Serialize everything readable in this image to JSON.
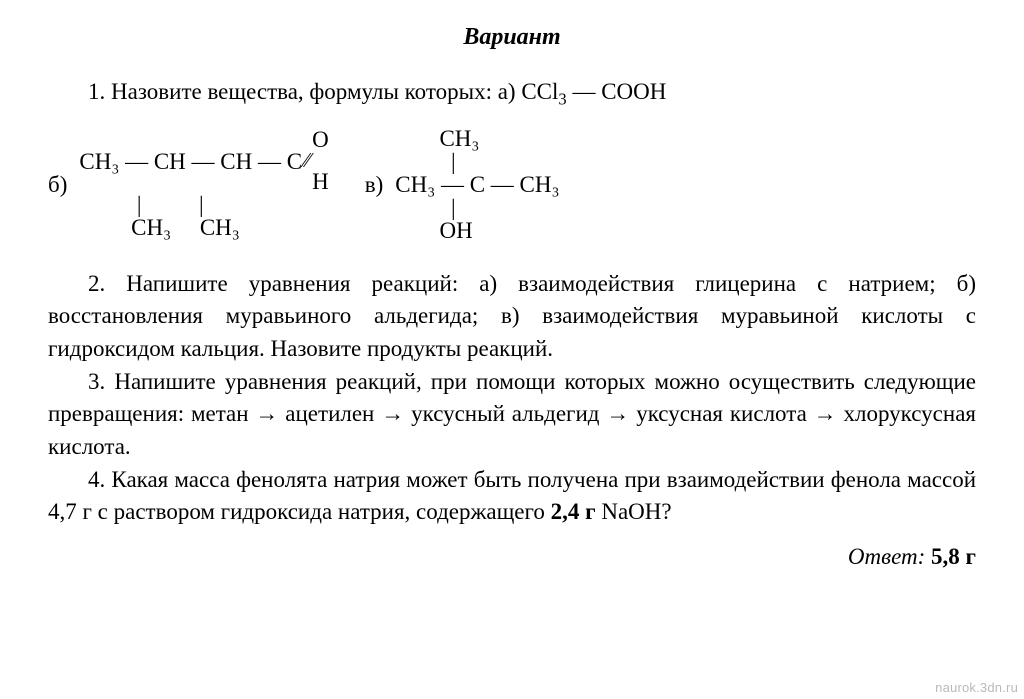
{
  "title": "Вариант",
  "q1": {
    "lead": "1. Назовите вещества, формулы которых: а) CCl",
    "sub1": "3",
    "tail": " — COOH"
  },
  "formula_b": {
    "label": "б)",
    "top": "                                CH₃",
    "vtop": "                                  |",
    "main_l": "CH₃ — CH — CH — C",
    "ald_top": "O",
    "ald_mid": "⁄⁄",
    "ald_bot": "H",
    "vbot": "          |          |",
    "bot": "         CH₃     CH₃"
  },
  "formula_v": {
    "label": "в)",
    "top": "             CH₃",
    "vtop": "               |",
    "main": "CH₃ — C — CH₃",
    "vbot": "               |",
    "bot": "             OH"
  },
  "q2": "2. Напишите уравнения реакций: а) взаимодействия глицерина с натрием; б) восстановления муравьиного альдегида; в) взаимодействия муравьиной кислоты с гидроксидом кальция. Назовите продукты реакций.",
  "q3": "3. Напишите уравнения реакций, при помощи которых можно осуществить следующие превращения: метан → ацетилен → уксусный альдегид → уксусная кислота → хлоруксусная кислота.",
  "q4_a": "4. Какая масса фенолята натрия может быть получена при взаимодействии фенола массой 4,7 г с раствором гидроксида натрия, содержащего ",
  "q4_b": "2,4 г",
  "q4_c": " NaOH?",
  "answer_label": "Ответ:",
  "answer_value": " 5,8 г",
  "watermark": "naurok.3dn.ru",
  "colors": {
    "text": "#000000",
    "bg": "#ffffff",
    "watermark": "#b9b9b9"
  }
}
